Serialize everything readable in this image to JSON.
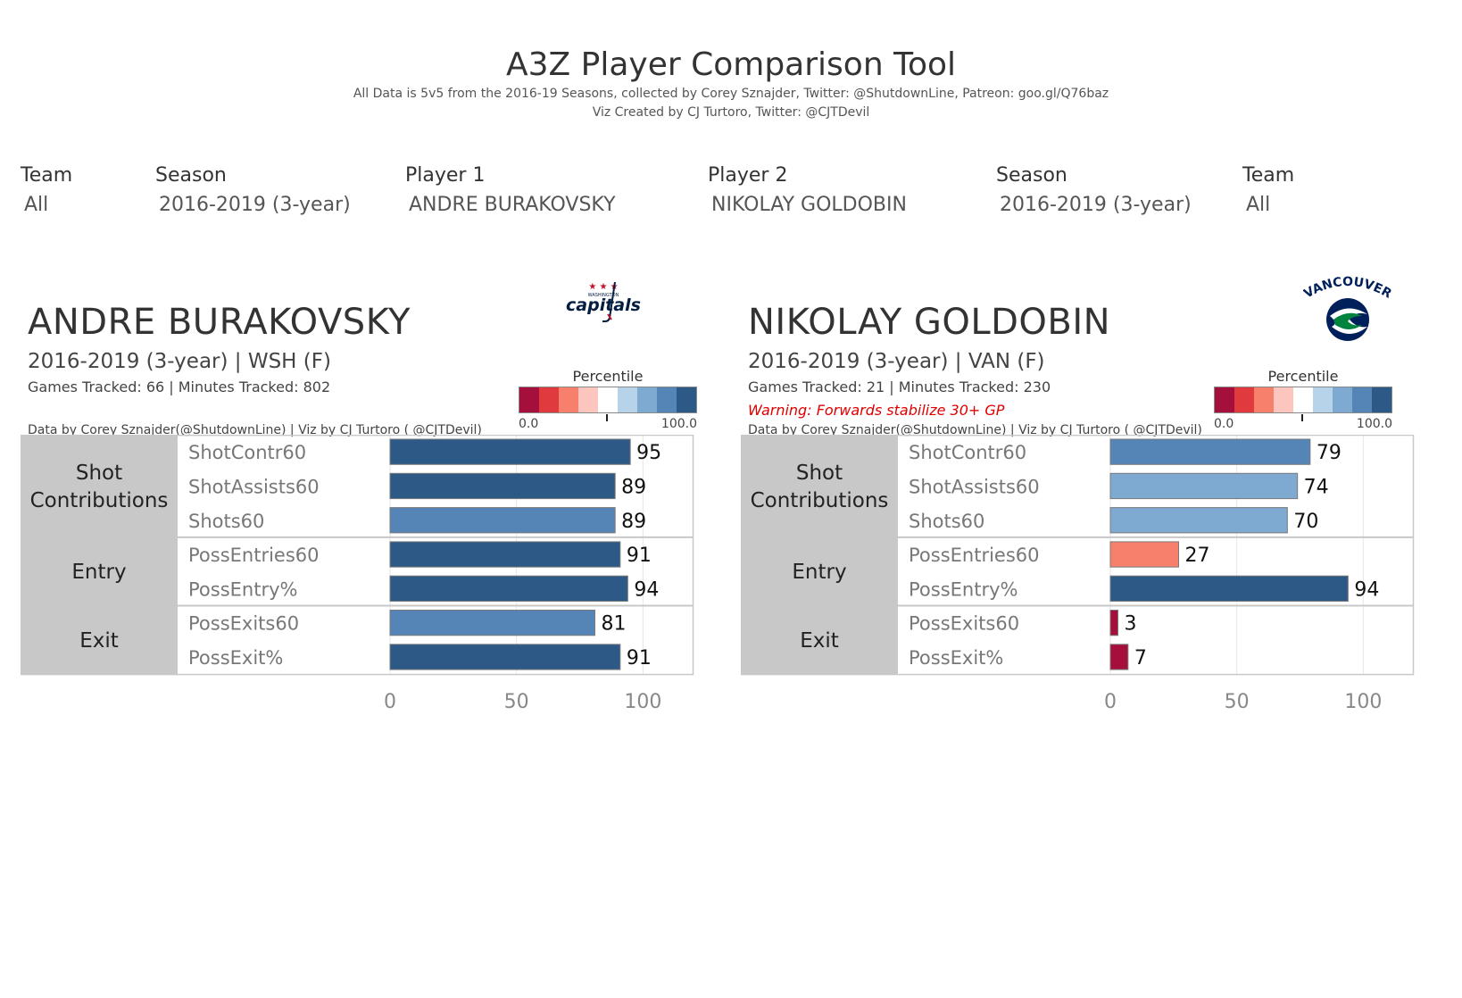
{
  "header": {
    "title": "A3Z Player Comparison Tool",
    "subtitle1": "All Data is 5v5 from the 2016-19 Seasons, collected by Corey Sznajder, Twitter: @ShutdownLine, Patreon: goo.gl/Q76baz",
    "subtitle2": "Viz Created by CJ Turtoro, Twitter: @CJTDevil"
  },
  "filters": [
    {
      "label": "Team",
      "value": "All"
    },
    {
      "label": "Season",
      "value": "2016-2019 (3-year)"
    },
    {
      "label": "Player 1",
      "value": "ANDRE BURAKOVSKY"
    },
    {
      "label": "Player 2",
      "value": "NIKOLAY GOLDOBIN"
    },
    {
      "label": "Season",
      "value": "2016-2019 (3-year)"
    },
    {
      "label": "Team",
      "value": "All"
    }
  ],
  "legend": {
    "title": "Percentile",
    "min_label": "0.0",
    "max_label": "100.0",
    "colors": [
      "#a50f3c",
      "#e0393e",
      "#f6806b",
      "#fcc5bd",
      "#ffffff",
      "#b7d3ea",
      "#7ea9d1",
      "#5584b6",
      "#2d5986"
    ]
  },
  "players": [
    {
      "name": "ANDRE BURAKOVSKY",
      "subline": "2016-2019 (3-year) | WSH (F)",
      "tracked": "Games Tracked: 66  | Minutes Tracked: 802",
      "warning": "",
      "credit": "Data by Corey Sznajder(@ShutdownLine) | Viz by CJ Turtoro ( @CJTDevil)",
      "logo_text": "capitals",
      "logo_subtext": "WASHINGTON",
      "logo_color": "#041e42",
      "logo_accent": "#c8102e"
    },
    {
      "name": "NIKOLAY GOLDOBIN",
      "subline": "2016-2019 (3-year) | VAN (F)",
      "tracked": "Games Tracked: 21  | Minutes Tracked: 230",
      "warning": "Warning: Forwards stabilize 30+ GP",
      "credit": "Data by Corey Sznajder(@ShutdownLine) | Viz by CJ Turtoro ( @CJTDevil)",
      "logo_text": "VANCOUVER",
      "logo_color": "#00205b",
      "logo_accent": "#00843d"
    }
  ],
  "chart_data": [
    {
      "type": "bar",
      "player": "ANDRE BURAKOVSKY",
      "groups": [
        {
          "name": "Shot Contributions",
          "name_lines": [
            "Shot",
            "Contributions"
          ],
          "metrics": [
            "ShotContr60",
            "ShotAssists60",
            "Shots60"
          ]
        },
        {
          "name": "Entry",
          "name_lines": [
            "Entry"
          ],
          "metrics": [
            "PossEntries60",
            "PossEntry%"
          ]
        },
        {
          "name": "Exit",
          "name_lines": [
            "Exit"
          ],
          "metrics": [
            "PossExits60",
            "PossExit%"
          ]
        }
      ],
      "categories": [
        "ShotContr60",
        "ShotAssists60",
        "Shots60",
        "PossEntries60",
        "PossEntry%",
        "PossExits60",
        "PossExit%"
      ],
      "values": [
        95,
        89,
        89,
        91,
        94,
        81,
        91
      ],
      "bar_colors": [
        "#2d5986",
        "#2d5986",
        "#5584b6",
        "#2d5986",
        "#2d5986",
        "#5584b6",
        "#2d5986"
      ],
      "xlim": [
        0,
        120
      ],
      "xticks": [
        0,
        50,
        100
      ],
      "grid": true
    },
    {
      "type": "bar",
      "player": "NIKOLAY GOLDOBIN",
      "groups": [
        {
          "name": "Shot Contributions",
          "name_lines": [
            "Shot",
            "Contributions"
          ],
          "metrics": [
            "ShotContr60",
            "ShotAssists60",
            "Shots60"
          ]
        },
        {
          "name": "Entry",
          "name_lines": [
            "Entry"
          ],
          "metrics": [
            "PossEntries60",
            "PossEntry%"
          ]
        },
        {
          "name": "Exit",
          "name_lines": [
            "Exit"
          ],
          "metrics": [
            "PossExits60",
            "PossExit%"
          ]
        }
      ],
      "categories": [
        "ShotContr60",
        "ShotAssists60",
        "Shots60",
        "PossEntries60",
        "PossEntry%",
        "PossExits60",
        "PossExit%"
      ],
      "values": [
        79,
        74,
        70,
        27,
        94,
        3,
        7
      ],
      "bar_colors": [
        "#5584b6",
        "#7ea9d1",
        "#7ea9d1",
        "#f6806b",
        "#2d5986",
        "#a50f3c",
        "#a50f3c"
      ],
      "xlim": [
        0,
        120
      ],
      "xticks": [
        0,
        50,
        100
      ],
      "grid": true
    }
  ]
}
